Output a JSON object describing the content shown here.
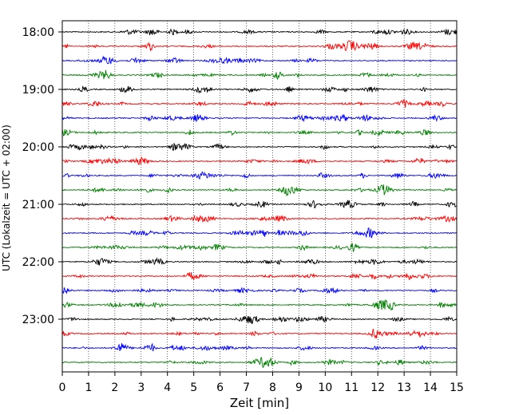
{
  "chart_data": {
    "type": "line",
    "title": "",
    "xlabel": "Zeit  [min]",
    "ylabel": "UTC (Lokalzeit = UTC + 02:00)",
    "xlim": [
      0,
      15
    ],
    "x_ticks": [
      "0",
      "1",
      "2",
      "3",
      "4",
      "5",
      "6",
      "7",
      "8",
      "9",
      "10",
      "11",
      "12",
      "13",
      "14",
      "15"
    ],
    "y_tick_labels": [
      "18:00",
      "19:00",
      "20:00",
      "21:00",
      "22:00",
      "23:00"
    ],
    "trace_start": "18:00",
    "trace_interval_min": 15,
    "trace_count": 24,
    "colors": [
      "#000000",
      "#ff0000",
      "#0000ff",
      "#008000"
    ],
    "grid": "vertical dotted"
  }
}
